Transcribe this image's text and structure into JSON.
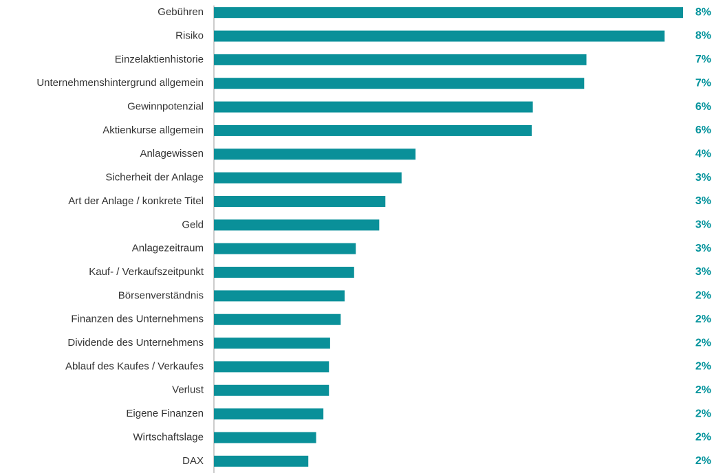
{
  "chart_data": {
    "type": "bar",
    "orientation": "horizontal",
    "color": "#0a9099",
    "categories": [
      "Gebühren",
      "Risiko",
      "Einzelaktienhistorie",
      "Unternehmenshintergrund allgemein",
      "Gewinnpotenzial",
      "Aktienkurse allgemein",
      "Anlagewissen",
      "Sicherheit der Anlage",
      "Art der Anlage / konkrete Titel",
      "Geld",
      "Anlagezeitraum",
      "Kauf- / Verkaufszeitpunkt",
      "Börsenverständnis",
      "Finanzen des Unternehmens",
      "Dividende des Unternehmens",
      "Ablauf des Kaufes / Verkaufes",
      "Verlust",
      "Eigene Finanzen",
      "Wirtschaftslage",
      "DAX"
    ],
    "values": [
      8.4,
      8.07,
      6.67,
      6.63,
      5.71,
      5.69,
      3.61,
      3.36,
      3.07,
      2.96,
      2.54,
      2.51,
      2.34,
      2.27,
      2.08,
      2.06,
      2.06,
      1.96,
      1.83,
      1.69
    ],
    "value_labels": [
      "8%",
      "8%",
      "7%",
      "7%",
      "6%",
      "6%",
      "4%",
      "3%",
      "3%",
      "3%",
      "3%",
      "3%",
      "2%",
      "2%",
      "2%",
      "2%",
      "2%",
      "2%",
      "2%",
      "2%"
    ]
  }
}
